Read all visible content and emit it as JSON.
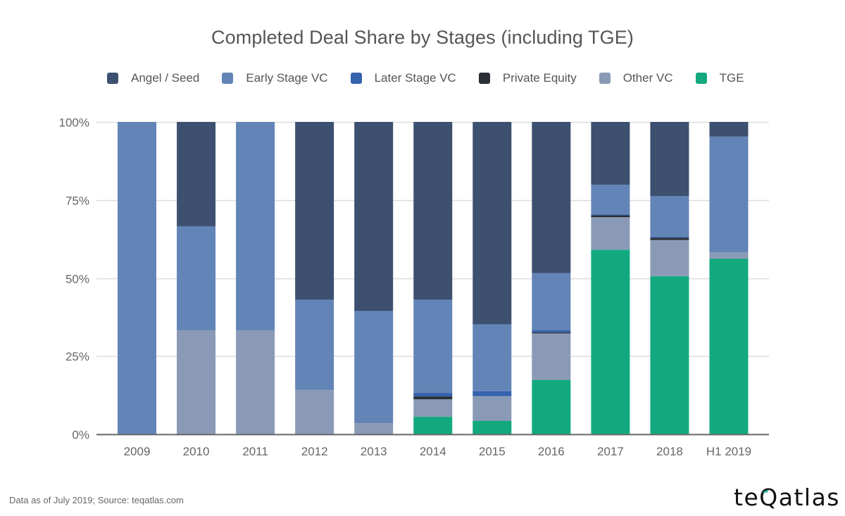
{
  "chart_data": {
    "type": "bar",
    "stacked": true,
    "normalized": true,
    "title": "Completed Deal Share by Stages (including TGE)",
    "xlabel": "",
    "ylabel": "",
    "ylim": [
      0,
      100
    ],
    "yticks": [
      0,
      25,
      50,
      75,
      100
    ],
    "ytick_labels": [
      "0%",
      "25%",
      "50%",
      "75%",
      "100%"
    ],
    "grid": true,
    "legend_position": "top",
    "categories": [
      "2009",
      "2010",
      "2011",
      "2012",
      "2013",
      "2014",
      "2015",
      "2016",
      "2017",
      "2018",
      "H1 2019"
    ],
    "series": [
      {
        "name": "TGE",
        "color": "#13a97f",
        "values": [
          0,
          0,
          0,
          0,
          0,
          5.6,
          4.3,
          17.4,
          59.1,
          50.6,
          56.2
        ]
      },
      {
        "name": "Other VC",
        "color": "#8a9ab6",
        "values": [
          0,
          33.3,
          33.3,
          14.2,
          3.6,
          5.6,
          7.9,
          14.9,
          10.4,
          11.6,
          2.0
        ]
      },
      {
        "name": "Private Equity",
        "color": "#2a2e35",
        "values": [
          0,
          0,
          0,
          0,
          0,
          0.9,
          0,
          0.3,
          0.6,
          0.7,
          0
        ]
      },
      {
        "name": "Later Stage VC",
        "color": "#3562ad",
        "values": [
          0,
          0,
          0,
          0,
          0,
          1.1,
          1.6,
          0.7,
          0.3,
          0.3,
          0
        ]
      },
      {
        "name": "Early Stage VC",
        "color": "#6384b6",
        "values": [
          100,
          33.3,
          66.7,
          28.9,
          35.9,
          29.9,
          21.4,
          18.3,
          9.5,
          13.1,
          37.1
        ]
      },
      {
        "name": "Angel / Seed",
        "color": "#3d5070",
        "values": [
          0,
          33.4,
          0,
          56.9,
          60.5,
          56.9,
          64.8,
          48.4,
          20.1,
          23.7,
          4.7
        ]
      }
    ],
    "legend_order": [
      "Angel / Seed",
      "Early Stage VC",
      "Later Stage VC",
      "Private Equity",
      "Other VC",
      "TGE"
    ]
  },
  "footer": {
    "note": "Data as of July 2019; Source: teqatlas.com",
    "logo_before": "te",
    "logo_q": "Q",
    "logo_after": "atlas",
    "logo_accent": "#2bb59a"
  }
}
